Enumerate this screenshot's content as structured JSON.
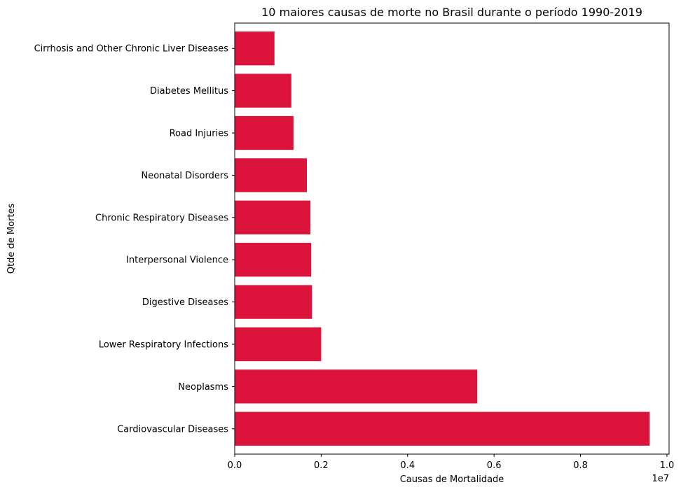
{
  "chart_data": {
    "type": "bar",
    "orientation": "horizontal",
    "title": "10 maiores causas de morte no Brasil durante o período 1990-2019",
    "xlabel": "Causas de Mortalidade",
    "ylabel": "Qtde de Mortes",
    "x_offset_label": "1e7",
    "xlim": [
      0,
      10050000
    ],
    "x_ticks": [
      0,
      2000000,
      4000000,
      6000000,
      8000000,
      10000000
    ],
    "x_tick_labels": [
      "0.0",
      "0.2",
      "0.4",
      "0.6",
      "0.8",
      "1.0"
    ],
    "categories": [
      "Cardiovascular Diseases",
      "Neoplasms",
      "Lower Respiratory Infections",
      "Digestive Diseases",
      "Interpersonal Violence",
      "Chronic Respiratory Diseases",
      "Neonatal Disorders",
      "Road Injuries",
      "Diabetes Mellitus",
      "Cirrhosis and Other Chronic Liver Diseases"
    ],
    "values": [
      9600000,
      5610000,
      2000000,
      1790000,
      1770000,
      1750000,
      1670000,
      1360000,
      1310000,
      920000
    ],
    "bar_color": "#dc143c",
    "grid": false,
    "legend": "none"
  }
}
